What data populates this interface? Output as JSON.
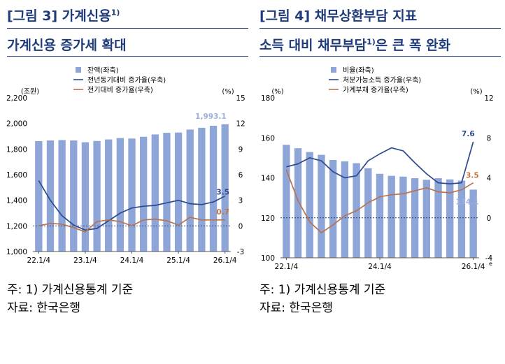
{
  "panels": [
    {
      "title": "[그림 3] 가계신용",
      "title_sup": "1)",
      "subtitle": "가계신용 증가세 확대",
      "subtitle_sup": "",
      "subtitle_tail": ""
    },
    {
      "title": "[그림 4] 채무상환부담 지표",
      "title_sup": "",
      "subtitle": "소득 대비 채무부담",
      "subtitle_sup": "1)",
      "subtitle_tail": "은 큰 폭 완화"
    }
  ],
  "notes": {
    "note1": "주: 1) 가계신용통계 기준",
    "source1": "자료: 한국은행",
    "note2": "주: 1) 가계신용통계 기준",
    "source2": "자료: 한국은행"
  },
  "chart_data": [
    {
      "type": "bar",
      "left_unit": "(조원)",
      "right_unit": "(%)",
      "ylim_left": [
        1000,
        2200
      ],
      "yticks_left": [
        "1,000",
        "1,200",
        "1,400",
        "1,600",
        "1,800",
        "2,000",
        "2,200"
      ],
      "ylim_right": [
        -3,
        15
      ],
      "yticks_right": [
        "-3",
        "0",
        "3",
        "6",
        "9",
        "12",
        "15"
      ],
      "xticks": [
        "22.1/4",
        "23.1/4",
        "24.1/4",
        "25.1/4",
        "26.1/4"
      ],
      "series": [
        {
          "name": "잔액(좌축)",
          "axis": "left",
          "kind": "bar",
          "color": "#8ea5d8",
          "values": [
            1862,
            1867,
            1870,
            1867,
            1853,
            1863,
            1875,
            1886,
            1882,
            1896,
            1914,
            1927,
            1929,
            1952,
            1966,
            1982,
            1993.1
          ]
        },
        {
          "name": "전년동기대비 증가율(우축)",
          "axis": "right",
          "kind": "line",
          "color": "#2e4a8f",
          "values": [
            5.3,
            3.0,
            1.2,
            0.1,
            -0.5,
            -0.3,
            0.6,
            1.5,
            2.1,
            2.3,
            2.4,
            2.7,
            3.0,
            2.6,
            2.5,
            2.8,
            3.5
          ]
        },
        {
          "name": "전기대비 증가율(우축)",
          "axis": "right",
          "kind": "line",
          "color": "#b7734f",
          "values": [
            0.0,
            0.3,
            0.2,
            -0.2,
            -0.7,
            0.5,
            0.7,
            0.5,
            0.0,
            0.7,
            0.8,
            0.6,
            0.1,
            1.0,
            0.7,
            0.7,
            0.7
          ]
        }
      ],
      "labels": {
        "bar_last": "1,993.1",
        "yoy_last": "3.5",
        "qoq_last": "0.7"
      },
      "zero_line": 0
    },
    {
      "type": "bar",
      "left_unit": "(%)",
      "right_unit": "(%)",
      "ylim_left": [
        100,
        180
      ],
      "yticks_left": [
        "100",
        "120",
        "140",
        "160",
        "180"
      ],
      "ylim_right": [
        -4,
        12
      ],
      "yticks_right": [
        "-4",
        "0",
        "4",
        "8",
        "12"
      ],
      "xticks": [
        "22.1/4",
        "24.1/4",
        "26.1/4"
      ],
      "x_footnote": "e",
      "series": [
        {
          "name": "비율(좌축)",
          "axis": "left",
          "kind": "bar",
          "color": "#8ea5d8",
          "values": [
            156.5,
            154.8,
            152.9,
            151.5,
            148.9,
            148.2,
            147.3,
            144.8,
            142.0,
            141.0,
            140.6,
            139.8,
            139.0,
            139.8,
            139.2,
            138.6,
            134.1
          ]
        },
        {
          "name": "처분가능소득 증가율(우축)",
          "axis": "right",
          "kind": "line",
          "color": "#2e4a8f",
          "values": [
            5.1,
            5.4,
            6.0,
            5.7,
            4.6,
            4.0,
            4.2,
            5.7,
            6.4,
            7.0,
            6.7,
            5.5,
            4.4,
            3.5,
            3.4,
            3.5,
            7.6
          ]
        },
        {
          "name": "가계부채 증가율(우축)",
          "axis": "right",
          "kind": "line",
          "color": "#b7734f",
          "values": [
            4.8,
            1.7,
            -0.4,
            -1.5,
            -0.7,
            0.2,
            0.7,
            1.5,
            2.1,
            2.3,
            2.4,
            2.7,
            3.0,
            2.6,
            2.5,
            2.8,
            3.5
          ]
        }
      ],
      "labels": {
        "bar_last": "134.1",
        "yoy_last": "7.6",
        "qoq_last": "3.5"
      },
      "zero_line": 0
    }
  ]
}
